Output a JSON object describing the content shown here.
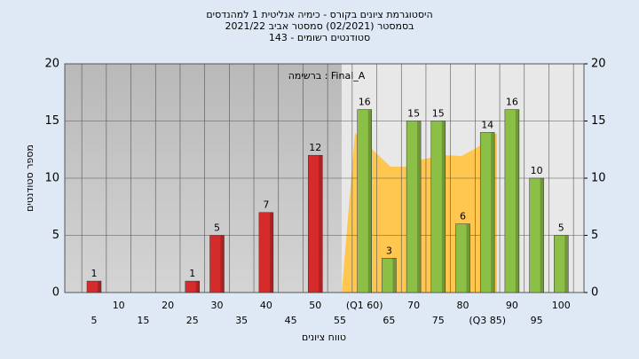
{
  "chart_data": {
    "type": "bar",
    "title": "היסטוגרמת ציונים בקורס - כימיה אנליטית 1 למהנדסים",
    "subtitle": "בסמסטר  (02/2021)  סמסטר אביב 2021/22",
    "subtitle2": "143 - סטודנטים רשומים",
    "annotation": "ברשימה : Final_A",
    "x_label": "טווח ציונים",
    "y_label": "מספר סטודנטים",
    "categories": [
      "5",
      "10",
      "15",
      "20",
      "25",
      "30",
      "35",
      "40",
      "45",
      "50",
      "55",
      "(Q1 60)",
      "65",
      "70",
      "75",
      "80",
      "(Q3 85)",
      "90",
      "95",
      "100"
    ],
    "values": [
      1,
      0,
      0,
      0,
      1,
      5,
      0,
      7,
      0,
      12,
      0,
      16,
      3,
      15,
      15,
      6,
      14,
      16,
      10,
      5
    ],
    "colors": [
      "#d62b2b",
      "#d62b2b",
      "#d62b2b",
      "#d62b2b",
      "#d62b2b",
      "#d62b2b",
      "#d62b2b",
      "#d62b2b",
      "#d62b2b",
      "#d62b2b",
      "#d62b2b",
      "#8cbf45",
      "#8cbf45",
      "#8cbf45",
      "#8cbf45",
      "#8cbf45",
      "#8cbf45",
      "#8cbf45",
      "#8cbf45",
      "#8cbf45"
    ],
    "ylim": [
      0,
      20
    ],
    "yticks": [
      0,
      5,
      10,
      15,
      20
    ],
    "y2lim": [
      0,
      20
    ],
    "y2ticks": [
      0,
      5,
      10,
      15,
      20
    ],
    "grid": true
  }
}
